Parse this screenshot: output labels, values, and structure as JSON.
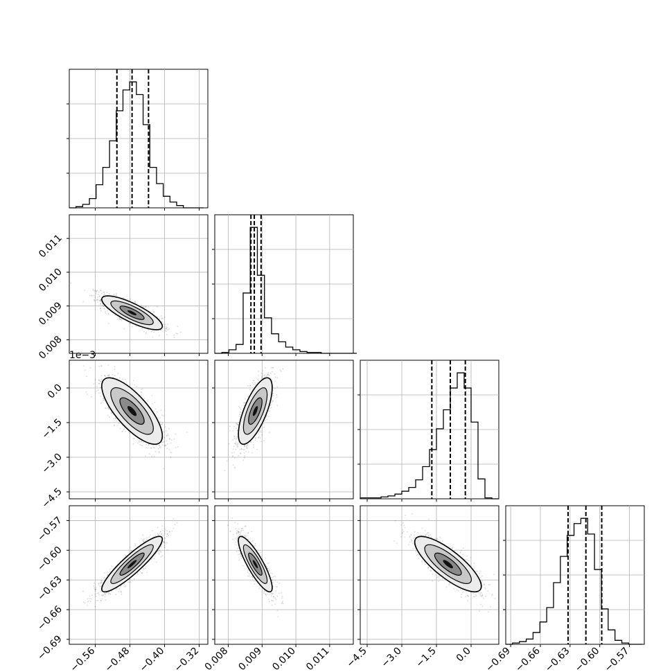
{
  "chart_data": {
    "type": "corner",
    "variables": [
      {
        "range": [
          -0.62,
          -0.3
        ],
        "ticks": [
          -0.56,
          -0.48,
          -0.4,
          -0.32
        ],
        "tick_labels": [
          "−0.56",
          "−0.48",
          "−0.40",
          "−0.32"
        ],
        "offset_text": ""
      },
      {
        "range": [
          0.0076,
          0.0117
        ],
        "ticks": [
          0.008,
          0.009,
          0.01,
          0.011
        ],
        "tick_labels": [
          "0.008",
          "0.009",
          "0.010",
          "0.011"
        ],
        "offset_text": ""
      },
      {
        "range": [
          -4.8,
          1.2
        ],
        "ticks": [
          -4.5,
          -3.0,
          -1.5,
          0.0
        ],
        "tick_labels": [
          "−4.5",
          "−3.0",
          "−1.5",
          "0.0"
        ],
        "offset_text": "1e−3"
      },
      {
        "range": [
          -0.695,
          -0.555
        ],
        "ticks": [
          -0.69,
          -0.66,
          -0.63,
          -0.6,
          -0.57
        ],
        "tick_labels": [
          "−0.69",
          "−0.66",
          "−0.63",
          "−0.60",
          "−0.57"
        ],
        "offset_text": ""
      }
    ],
    "diagonals": [
      {
        "quantiles": [
          -0.51,
          -0.475,
          -0.437
        ],
        "edges_start": -0.62,
        "bin": 0.0155,
        "counts": [
          0,
          1,
          3,
          8,
          20,
          35,
          58,
          84,
          102,
          109,
          98,
          72,
          35,
          21,
          10,
          5,
          2,
          0,
          0,
          0
        ]
      },
      {
        "quantiles": [
          0.00867,
          0.00877,
          0.00897
        ],
        "edges_start": 0.0076,
        "bin": 0.00021,
        "counts": [
          0,
          1,
          4,
          10,
          68,
          142,
          88,
          40,
          22,
          13,
          7,
          4,
          2,
          1,
          1,
          0,
          0,
          0,
          0,
          0
        ]
      },
      {
        "quantiles": [
          -1.7,
          -0.9,
          -0.25
        ],
        "edges_start": -4.8,
        "bin": 0.3,
        "counts": [
          1,
          1,
          1,
          2,
          3,
          5,
          8,
          12,
          20,
          34,
          52,
          74,
          94,
          117,
          133,
          117,
          81,
          21,
          1,
          0
        ]
      },
      {
        "quantiles": [
          -0.632,
          -0.614,
          -0.598
        ],
        "edges_start": -0.695,
        "bin": 0.0069,
        "counts": [
          0,
          1,
          2,
          4,
          9,
          17,
          28,
          47,
          67,
          83,
          92,
          96,
          84,
          57,
          27,
          11,
          3,
          1,
          0,
          0
        ]
      }
    ],
    "correlations": [
      {
        "row": 1,
        "col": 0,
        "rho": -0.8
      },
      {
        "row": 2,
        "col": 0,
        "rho": -0.75
      },
      {
        "row": 2,
        "col": 1,
        "rho": 0.7
      },
      {
        "row": 3,
        "col": 0,
        "rho": 0.9
      },
      {
        "row": 3,
        "col": 1,
        "rho": -0.85
      },
      {
        "row": 3,
        "col": 2,
        "rho": -0.8
      }
    ],
    "means": [
      -0.475,
      0.0088,
      -1.0,
      -0.614
    ],
    "sigmas": [
      0.035,
      0.00025,
      0.72,
      0.014
    ],
    "grid": true,
    "quantile_line_style": "dashed"
  }
}
